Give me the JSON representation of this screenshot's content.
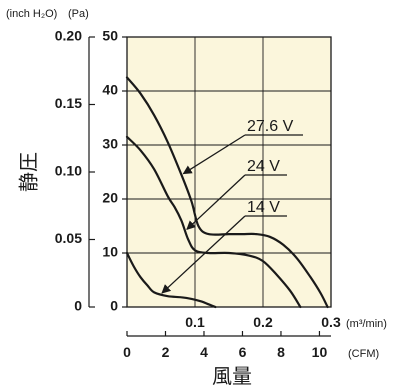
{
  "chart_data": {
    "type": "line",
    "title": "",
    "ylabel": "静圧",
    "xlabel": "風量",
    "colors": {
      "plot_background": "#fbf6dc",
      "grid": "#1a1a1a",
      "line": "#1a1a1a"
    },
    "grid": true,
    "legend": "none",
    "x_axis": {
      "unit": "(m³/min)",
      "lim": [
        0,
        0.3
      ],
      "ticks": [
        0.1,
        0.2,
        0.3
      ],
      "tick_labels": [
        "0.1",
        "0.2",
        "0.3"
      ]
    },
    "x2_axis": {
      "unit": "(CFM)",
      "lim": [
        0,
        10.6
      ],
      "ticks": [
        0,
        2,
        4,
        6,
        8,
        10
      ],
      "tick_labels": [
        "0",
        "2",
        "4",
        "6",
        "8",
        "10"
      ]
    },
    "y_axis": {
      "unit": "(Pa)",
      "lim": [
        0,
        50
      ],
      "ticks": [
        0,
        10,
        20,
        30,
        40,
        50
      ],
      "tick_labels": [
        "0",
        "10",
        "20",
        "30",
        "40",
        "50"
      ]
    },
    "y2_axis": {
      "unit": "(inch H₂O)",
      "lim": [
        0,
        0.2
      ],
      "ticks": [
        0,
        0.05,
        0.1,
        0.15,
        0.2
      ],
      "tick_labels": [
        "0",
        "0.05",
        "0.10",
        "0.15",
        "0.20"
      ]
    },
    "series": [
      {
        "name": "27.6 V",
        "x": [
          0,
          0.02,
          0.04,
          0.06,
          0.08,
          0.095,
          0.105,
          0.12,
          0.15,
          0.17,
          0.19,
          0.21,
          0.23,
          0.25,
          0.27,
          0.285,
          0.295
        ],
        "y": [
          42.5,
          39.5,
          35.5,
          30.5,
          24.5,
          19.5,
          15,
          13.5,
          13.5,
          13.5,
          13.5,
          13,
          11.5,
          9,
          5.5,
          2.5,
          0
        ]
      },
      {
        "name": "24 V",
        "x": [
          0,
          0.02,
          0.04,
          0.06,
          0.07,
          0.08,
          0.09,
          0.1,
          0.12,
          0.15,
          0.18,
          0.2,
          0.22,
          0.24,
          0.255
        ],
        "y": [
          31.5,
          29,
          25.5,
          20.5,
          18.5,
          16,
          12.5,
          10.5,
          10,
          10,
          9.5,
          8.5,
          6,
          3,
          0
        ]
      },
      {
        "name": "14 V",
        "x": [
          0,
          0.01,
          0.02,
          0.03,
          0.04,
          0.06,
          0.08,
          0.095,
          0.11,
          0.12,
          0.13
        ],
        "y": [
          10,
          7.5,
          5.5,
          4,
          2.7,
          2,
          1.8,
          1.5,
          1,
          0.5,
          0
        ]
      }
    ],
    "annotations": [
      {
        "series": "27.6 V",
        "label": "27.6 V"
      },
      {
        "series": "24 V",
        "label": "24 V"
      },
      {
        "series": "14 V",
        "label": "14 V"
      }
    ]
  }
}
